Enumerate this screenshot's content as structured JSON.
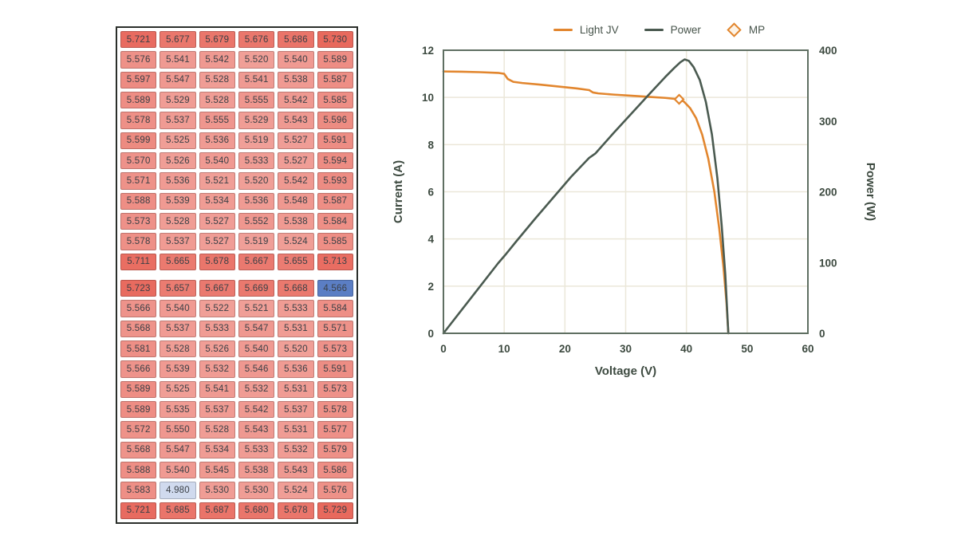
{
  "grid_panel": {
    "text_color": "#3b4046",
    "colormap": {
      "low_color": "#5b7ec4",
      "mid_color": "#ffffff",
      "high_color": "#e8695d",
      "min": 4.566,
      "mid": 5.148,
      "max": 5.73
    },
    "blocks": [
      {
        "rows": [
          [
            "5.721",
            "5.677",
            "5.679",
            "5.676",
            "5.686",
            "5.730"
          ],
          [
            "5.576",
            "5.541",
            "5.542",
            "5.520",
            "5.540",
            "5.589"
          ],
          [
            "5.597",
            "5.547",
            "5.528",
            "5.541",
            "5.538",
            "5.587"
          ],
          [
            "5.589",
            "5.529",
            "5.528",
            "5.555",
            "5.542",
            "5.585"
          ],
          [
            "5.578",
            "5.537",
            "5.555",
            "5.529",
            "5.543",
            "5.596"
          ],
          [
            "5.599",
            "5.525",
            "5.536",
            "5.519",
            "5.527",
            "5.591"
          ],
          [
            "5.570",
            "5.526",
            "5.540",
            "5.533",
            "5.527",
            "5.594"
          ],
          [
            "5.571",
            "5.536",
            "5.521",
            "5.520",
            "5.542",
            "5.593"
          ],
          [
            "5.588",
            "5.539",
            "5.534",
            "5.536",
            "5.548",
            "5.587"
          ],
          [
            "5.573",
            "5.528",
            "5.527",
            "5.552",
            "5.538",
            "5.584"
          ],
          [
            "5.578",
            "5.537",
            "5.527",
            "5.519",
            "5.524",
            "5.585"
          ],
          [
            "5.711",
            "5.665",
            "5.678",
            "5.667",
            "5.655",
            "5.713"
          ]
        ]
      },
      {
        "rows": [
          [
            "5.723",
            "5.657",
            "5.667",
            "5.669",
            "5.668",
            "4.566"
          ],
          [
            "5.566",
            "5.540",
            "5.522",
            "5.521",
            "5.533",
            "5.584"
          ],
          [
            "5.568",
            "5.537",
            "5.533",
            "5.547",
            "5.531",
            "5.571"
          ],
          [
            "5.581",
            "5.528",
            "5.526",
            "5.540",
            "5.520",
            "5.573"
          ],
          [
            "5.566",
            "5.539",
            "5.532",
            "5.546",
            "5.536",
            "5.591"
          ],
          [
            "5.589",
            "5.525",
            "5.541",
            "5.532",
            "5.531",
            "5.573"
          ],
          [
            "5.589",
            "5.535",
            "5.537",
            "5.542",
            "5.537",
            "5.578"
          ],
          [
            "5.572",
            "5.550",
            "5.528",
            "5.543",
            "5.531",
            "5.577"
          ],
          [
            "5.568",
            "5.547",
            "5.534",
            "5.533",
            "5.532",
            "5.579"
          ],
          [
            "5.588",
            "5.540",
            "5.545",
            "5.538",
            "5.543",
            "5.586"
          ],
          [
            "5.583",
            "4.980",
            "5.530",
            "5.530",
            "5.524",
            "5.576"
          ],
          [
            "5.721",
            "5.685",
            "5.687",
            "5.680",
            "5.678",
            "5.729"
          ]
        ]
      }
    ]
  },
  "chart_data": {
    "type": "line",
    "xlabel": "Voltage (V)",
    "ylabel_left": "Current (A)",
    "ylabel_right": "Power (W)",
    "xlim": [
      0,
      60
    ],
    "ylim_left": [
      0,
      12
    ],
    "ylim_right": [
      0,
      400
    ],
    "x_ticks": [
      0,
      10,
      20,
      30,
      40,
      50,
      60
    ],
    "y_ticks_left": [
      0,
      2,
      4,
      6,
      8,
      10,
      12
    ],
    "y_ticks_right": [
      0,
      100,
      200,
      300,
      400
    ],
    "grid": true,
    "grid_color": "#ebe7d9",
    "border_color": "#5f6f62",
    "tick_text_color": "#3d4a40",
    "legend_position": "top-center",
    "legend": [
      {
        "label": "Light JV",
        "type": "line",
        "color": "#e2862e"
      },
      {
        "label": "Power",
        "type": "line",
        "color": "#4a5a50"
      },
      {
        "label": "MP",
        "type": "diamond",
        "color": "#e2862e"
      }
    ],
    "series": [
      {
        "name": "Light JV",
        "axis": "left",
        "color": "#e2862e",
        "points": [
          [
            0,
            11.1
          ],
          [
            3,
            11.09
          ],
          [
            6,
            11.07
          ],
          [
            9,
            11.04
          ],
          [
            10.0,
            11.0
          ],
          [
            10.6,
            10.78
          ],
          [
            11.5,
            10.66
          ],
          [
            13,
            10.61
          ],
          [
            16,
            10.54
          ],
          [
            19,
            10.46
          ],
          [
            22,
            10.38
          ],
          [
            24.0,
            10.31
          ],
          [
            24.6,
            10.21
          ],
          [
            25.5,
            10.17
          ],
          [
            28,
            10.12
          ],
          [
            31,
            10.07
          ],
          [
            34,
            10.02
          ],
          [
            36.5,
            9.98
          ],
          [
            38.8,
            9.92
          ],
          [
            39.6,
            9.82
          ],
          [
            40.6,
            9.55
          ],
          [
            41.6,
            9.12
          ],
          [
            42.6,
            8.42
          ],
          [
            43.6,
            7.4
          ],
          [
            44.6,
            6.0
          ],
          [
            45.4,
            4.45
          ],
          [
            46.1,
            2.8
          ],
          [
            46.6,
            1.3
          ],
          [
            46.9,
            0
          ]
        ]
      },
      {
        "name": "Power",
        "axis": "right",
        "color": "#4a5a50",
        "points": [
          [
            0,
            0
          ],
          [
            3,
            33
          ],
          [
            6,
            66
          ],
          [
            9,
            99
          ],
          [
            10.3,
            112
          ],
          [
            12,
            130
          ],
          [
            15,
            161
          ],
          [
            18,
            191
          ],
          [
            21,
            221
          ],
          [
            24,
            248
          ],
          [
            25,
            254
          ],
          [
            28,
            283
          ],
          [
            31,
            311
          ],
          [
            34,
            339
          ],
          [
            36.5,
            362
          ],
          [
            38,
            375
          ],
          [
            39,
            383
          ],
          [
            39.7,
            387
          ],
          [
            40.4,
            385
          ],
          [
            41.2,
            376
          ],
          [
            42.2,
            358
          ],
          [
            43.2,
            327
          ],
          [
            44.2,
            281
          ],
          [
            45.1,
            219
          ],
          [
            45.8,
            153
          ],
          [
            46.4,
            83
          ],
          [
            46.9,
            0
          ]
        ]
      },
      {
        "name": "MP",
        "axis": "left",
        "type": "marker",
        "color": "#e2862e",
        "points": [
          [
            38.8,
            9.92
          ]
        ]
      }
    ]
  }
}
